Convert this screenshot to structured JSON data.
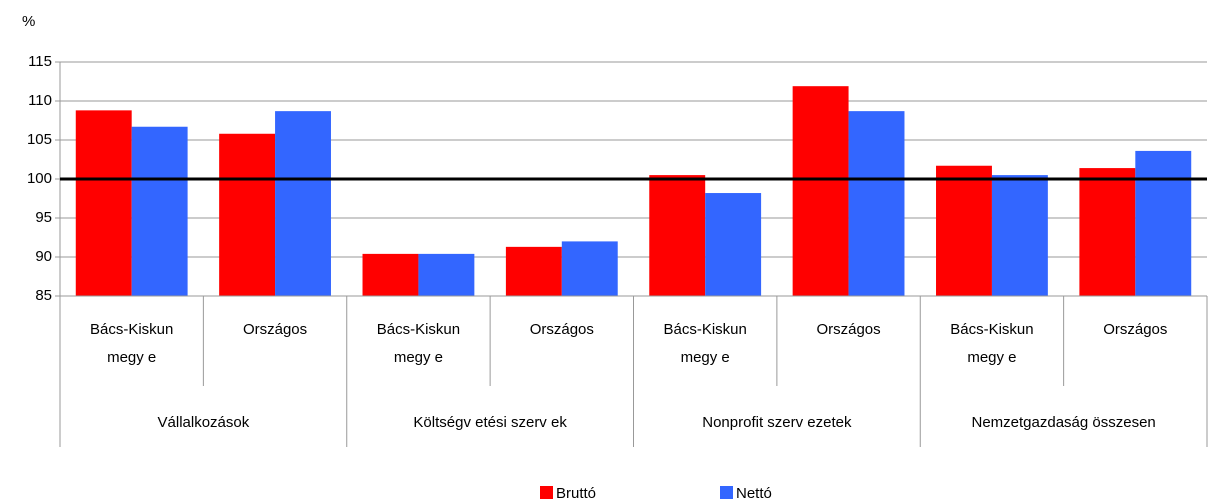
{
  "chart_data": {
    "type": "bar",
    "unit_label": "%",
    "groups": [
      "Vállalkozások",
      "Költségv etési szerv ek",
      "Nonprofit szerv ezetek",
      "Nemzetgazdaság összesen"
    ],
    "categories": [
      "Bács-Kiskun megy e",
      "Országos",
      "Bács-Kiskun megy e",
      "Országos",
      "Bács-Kiskun megy e",
      "Országos",
      "Bács-Kiskun megy e",
      "Országos"
    ],
    "series": [
      {
        "name": "Bruttó",
        "color": "#ff0000",
        "values": [
          108.8,
          105.8,
          90.4,
          91.3,
          100.5,
          111.9,
          101.7,
          101.4
        ]
      },
      {
        "name": "Nettó",
        "color": "#3366ff",
        "values": [
          106.7,
          108.7,
          90.4,
          92.0,
          98.2,
          108.7,
          100.5,
          103.6
        ]
      }
    ],
    "ylim": [
      85,
      115
    ],
    "yticks": [
      85,
      90,
      95,
      100,
      105,
      110,
      115
    ],
    "grid": true,
    "reference_line": 100,
    "legend": "bottom"
  }
}
